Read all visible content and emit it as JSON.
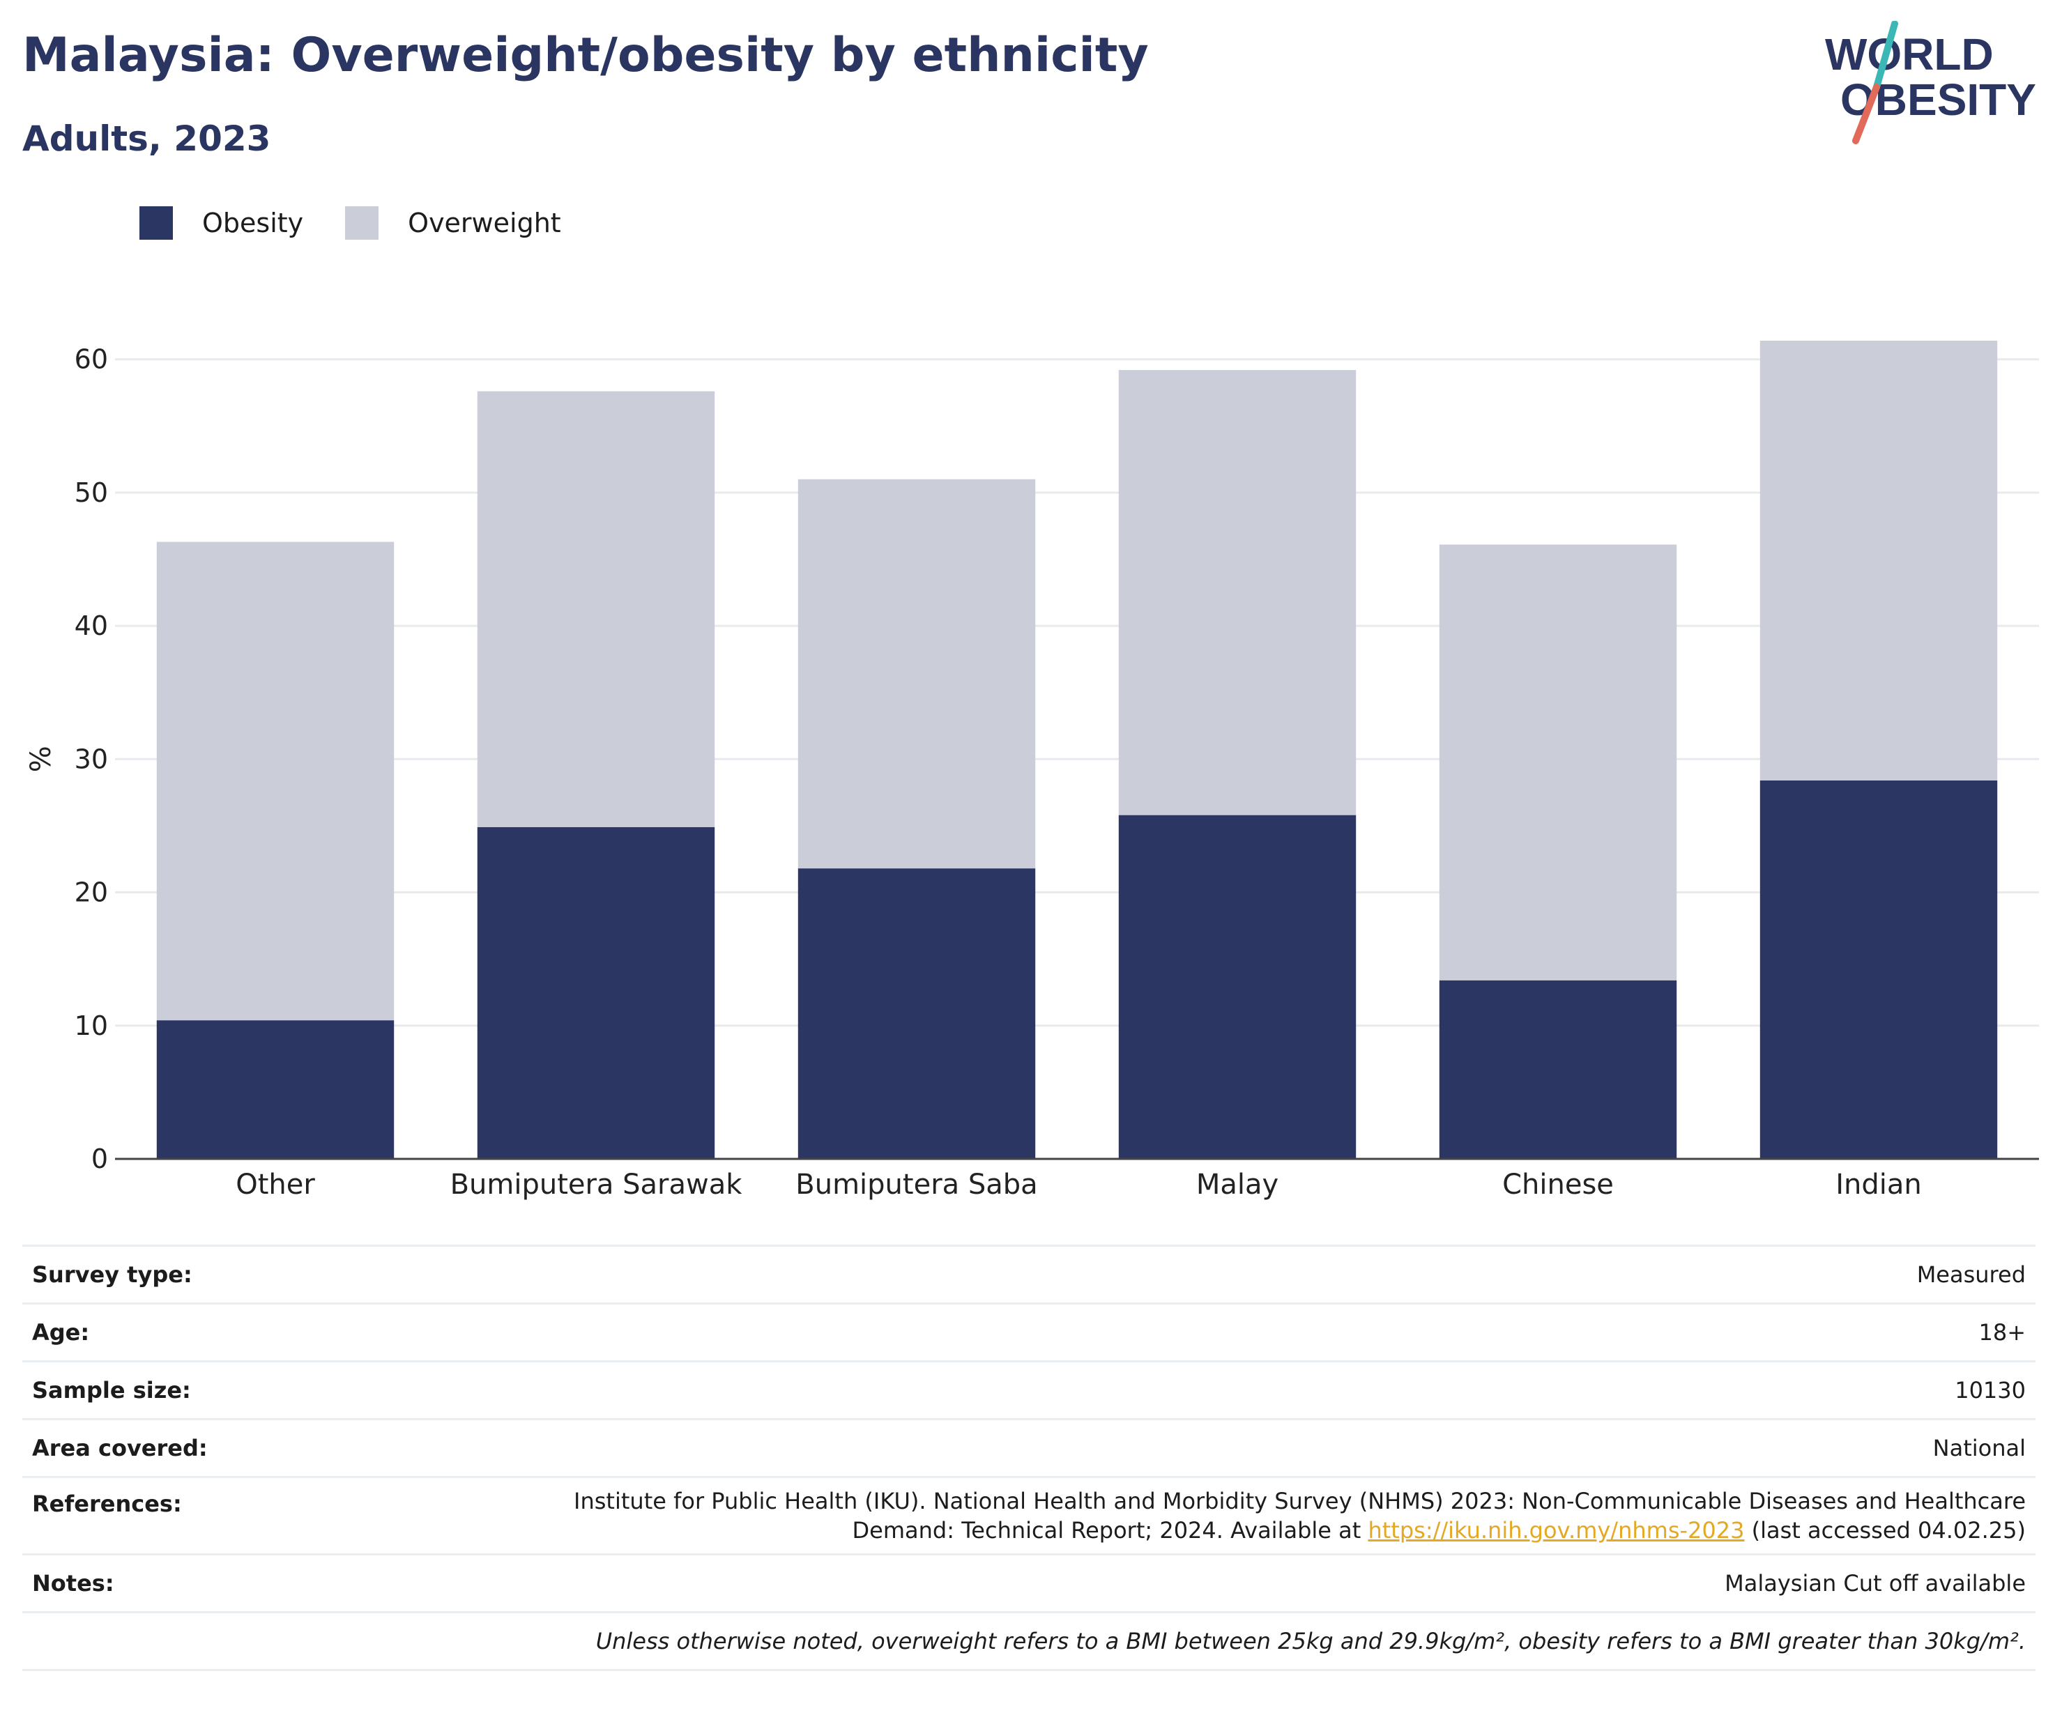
{
  "header": {
    "title": "Malaysia: Overweight/obesity by ethnicity",
    "subtitle": "Adults, 2023",
    "logo_line1": "WORLD",
    "logo_line2": "OBESITY"
  },
  "legend": [
    {
      "label": "Obesity",
      "color": "#2b3663"
    },
    {
      "label": "Overweight",
      "color": "#cbcdd9"
    }
  ],
  "chart_data": {
    "type": "bar",
    "stacked": true,
    "categories": [
      "Other",
      "Bumiputera Sarawak",
      "Bumiputera Saba",
      "Malay",
      "Chinese",
      "Indian"
    ],
    "series": [
      {
        "name": "Obesity",
        "color": "#2b3663",
        "values": [
          10.4,
          24.9,
          21.8,
          25.8,
          13.4,
          28.4
        ]
      },
      {
        "name": "Overweight",
        "color": "#cbcdd9",
        "values": [
          35.9,
          32.7,
          29.2,
          33.4,
          32.7,
          33.0
        ]
      }
    ],
    "ylabel": "%",
    "xlabel": "",
    "ylim": [
      0,
      65
    ],
    "yticks": [
      0,
      10,
      20,
      30,
      40,
      50,
      60
    ],
    "grid": true,
    "legend_position": "top-left"
  },
  "meta": {
    "rows": [
      {
        "key": "Survey type:",
        "value": "Measured"
      },
      {
        "key": "Age:",
        "value": "18+"
      },
      {
        "key": "Sample size:",
        "value": "10130"
      },
      {
        "key": "Area covered:",
        "value": "National"
      }
    ],
    "references": {
      "key": "References:",
      "text_line1": "Institute for Public Health (IKU). National Health and Morbidity Survey (NHMS) 2023: Non-Communicable Diseases and Healthcare",
      "text_line2_pre": "Demand: Technical Report; 2024. Available at ",
      "link": "https://iku.nih.gov.my/nhms-2023",
      "text_line2_post": " (last accessed 04.02.25)"
    },
    "notes": {
      "key": "Notes:",
      "value": "Malaysian Cut off available"
    },
    "footnote": "Unless otherwise noted, overweight refers to a BMI between 25kg and 29.9kg/m², obesity refers to a BMI greater than 30kg/m²."
  }
}
